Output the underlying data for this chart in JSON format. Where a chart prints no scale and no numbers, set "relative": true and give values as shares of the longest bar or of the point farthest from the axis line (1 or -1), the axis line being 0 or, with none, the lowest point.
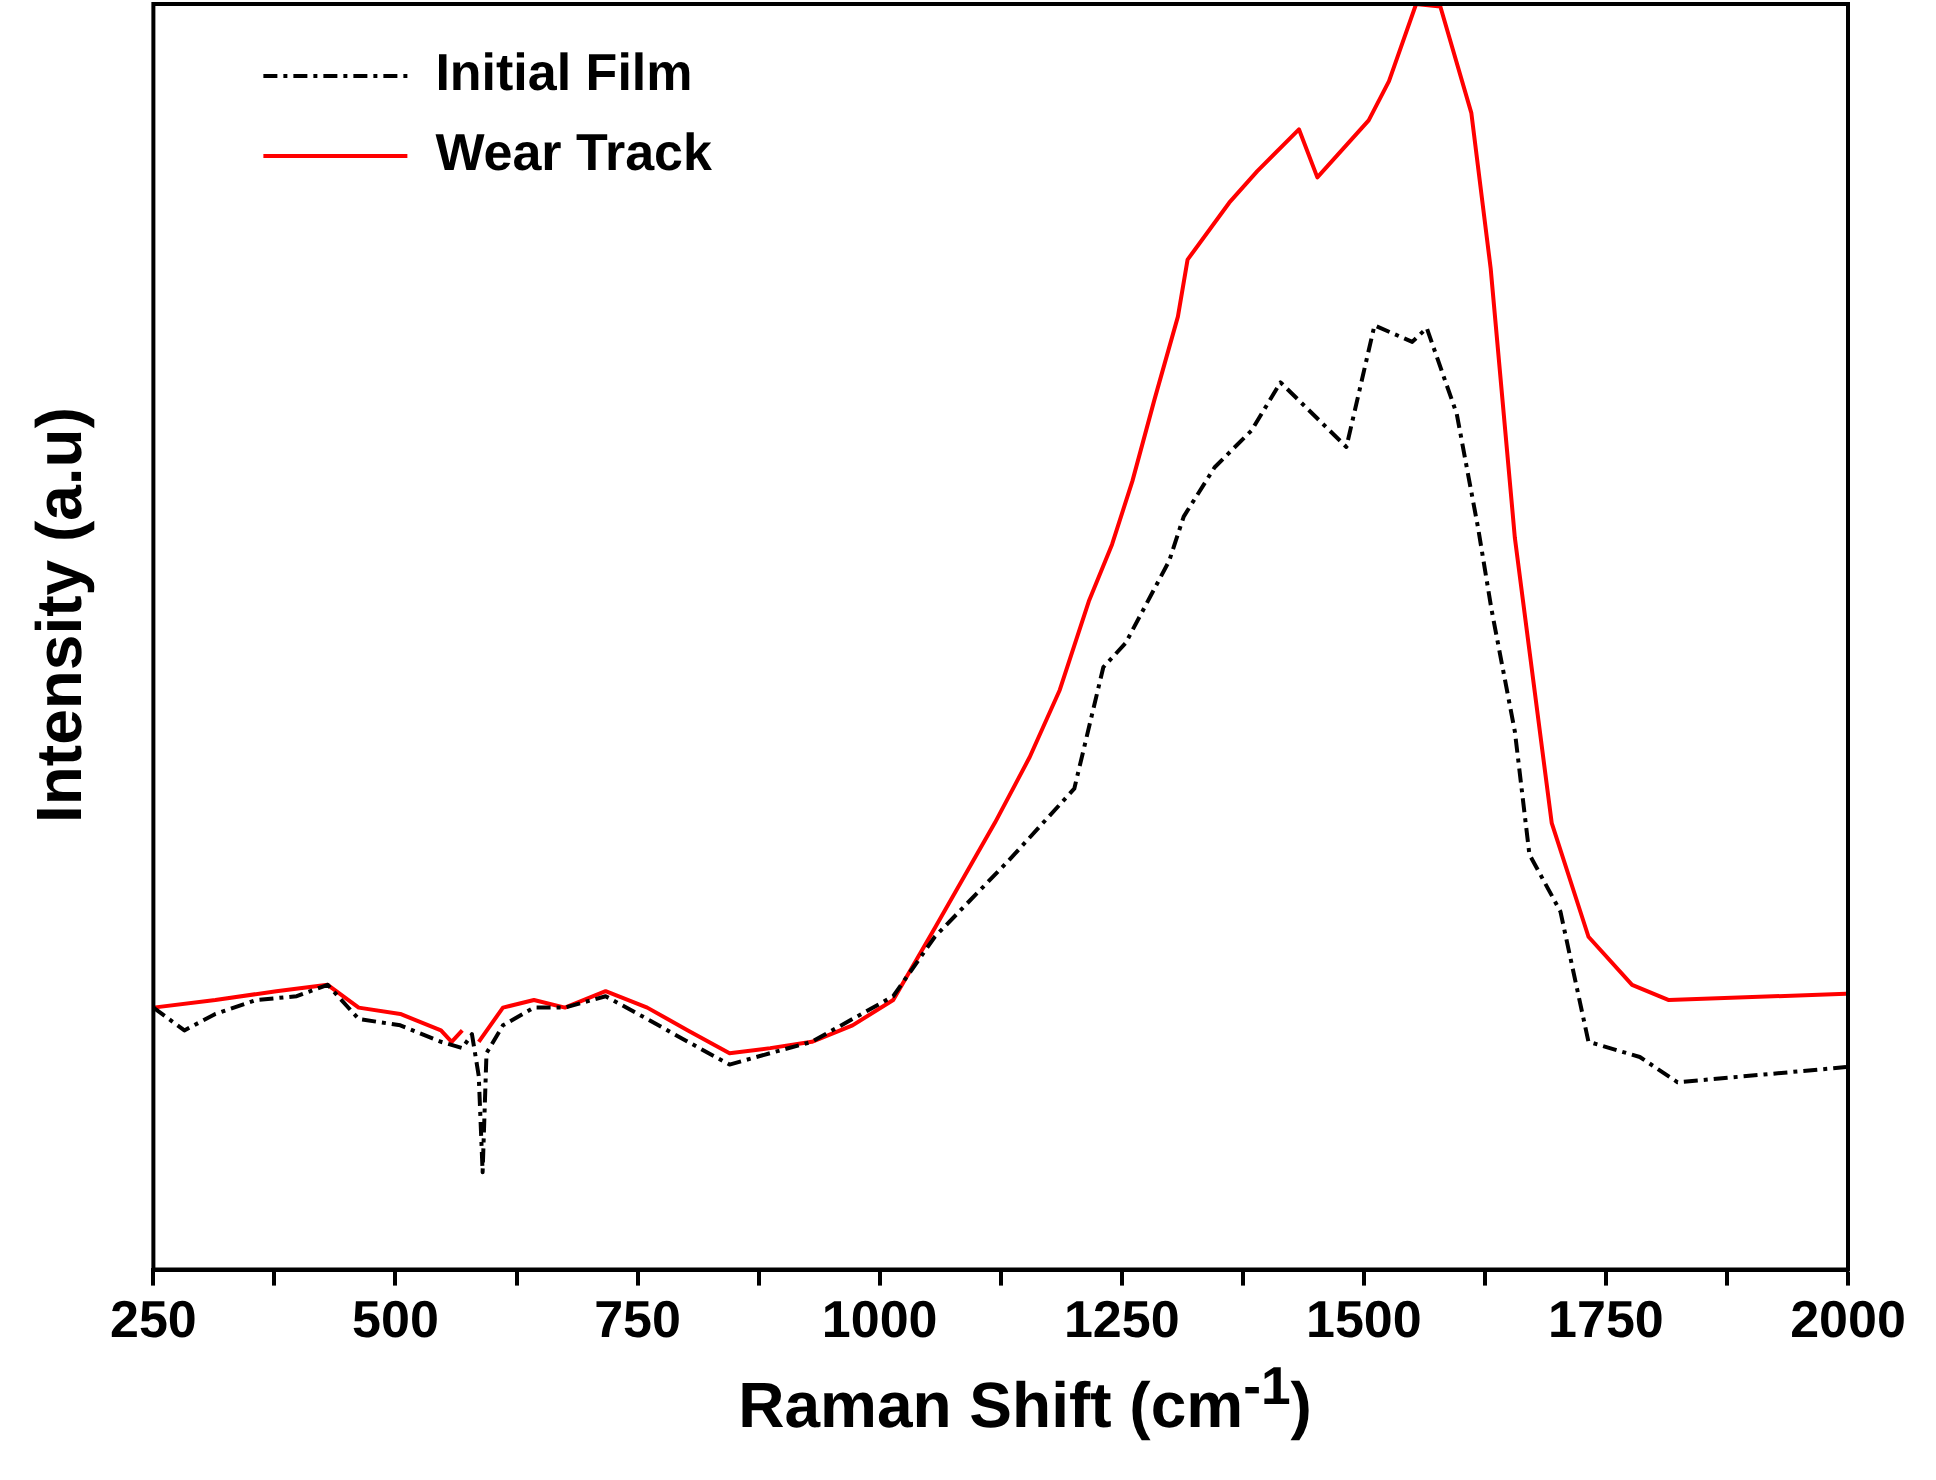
{
  "chart_data": {
    "type": "line",
    "xlabel": "Raman Shift (cm$^{-1}$)",
    "ylabel": "Intensity (a.u)",
    "relative": true,
    "xlim": [
      250,
      2000
    ],
    "xticks": [
      250,
      {
        "value": 375,
        "label": null
      },
      500,
      {
        "value": 625,
        "label": null
      },
      750,
      {
        "value": 875,
        "label": null
      },
      1000,
      {
        "value": 1125,
        "label": null
      },
      1250,
      {
        "value": 1375,
        "label": null
      },
      1500,
      {
        "value": 1625,
        "label": null
      },
      1750,
      {
        "value": 1875,
        "label": null
      },
      2000
    ],
    "grid": false,
    "legend": "top left",
    "marker": "none",
    "series": [
      {
        "name": "Initial Film",
        "color": "#000000",
        "line_style": "dashed",
        "x": [
          250,
          282,
          314,
          356,
          398,
          430,
          462,
          505,
          547,
          569,
          579,
          586,
          590,
          594,
          611,
          643,
          675,
          717,
          760,
          802,
          845,
          887,
          930,
          972,
          1014,
          1057,
          1133,
          1201,
          1231,
          1254,
          1299,
          1314,
          1346,
          1384,
          1414,
          1482,
          1511,
          1550,
          1565,
          1596,
          1618,
          1632,
          1656,
          1671,
          1703,
          1732,
          1785,
          1824,
          1998
        ],
        "values": [
          0.207,
          0.189,
          0.202,
          0.213,
          0.216,
          0.225,
          0.198,
          0.193,
          0.18,
          0.175,
          0.186,
          0.153,
          0.077,
          0.171,
          0.193,
          0.207,
          0.207,
          0.216,
          0.198,
          0.18,
          0.162,
          0.171,
          0.18,
          0.198,
          0.216,
          0.263,
          0.323,
          0.38,
          0.476,
          0.495,
          0.56,
          0.595,
          0.634,
          0.663,
          0.701,
          0.65,
          0.746,
          0.733,
          0.744,
          0.676,
          0.586,
          0.521,
          0.425,
          0.328,
          0.283,
          0.18,
          0.168,
          0.148,
          0.16
        ]
      },
      {
        "name": "Wear Track",
        "color": "#ff0000",
        "line_style": "solid",
        "x": [
          250,
          314,
          377,
          430,
          462,
          505,
          547,
          558,
          569,
          577,
          586,
          611,
          643,
          675,
          717,
          760,
          802,
          845,
          887,
          930,
          972,
          1014,
          1057,
          1119,
          1155,
          1186,
          1216,
          1240,
          1261,
          1284,
          1308,
          1318,
          1361,
          1390,
          1433,
          1452,
          1505,
          1526,
          1554,
          1579,
          1611,
          1631,
          1656,
          1694,
          1732,
          1777,
          1815,
          1998
        ],
        "values": [
          0.207,
          0.213,
          0.22,
          0.225,
          0.207,
          0.202,
          0.189,
          0.18,
          0.189,
          null,
          0.18,
          0.207,
          0.213,
          0.207,
          0.22,
          0.207,
          0.189,
          0.171,
          0.175,
          0.18,
          0.193,
          0.213,
          0.27,
          0.353,
          0.405,
          0.458,
          0.528,
          0.573,
          0.623,
          0.688,
          0.753,
          0.798,
          0.843,
          0.868,
          0.901,
          0.863,
          0.908,
          0.939,
          1,
          0.998,
          0.914,
          0.791,
          0.578,
          0.353,
          0.263,
          0.225,
          0.213,
          0.218
        ]
      }
    ]
  }
}
